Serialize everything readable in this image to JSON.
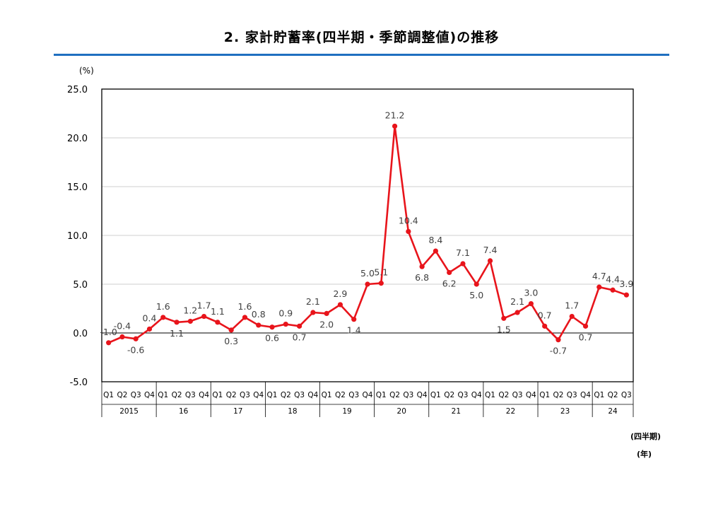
{
  "page": {
    "title": "2. 家計貯蓄率(四半期・季節調整値)の推移",
    "y_unit": "(%)",
    "x_unit_quarter": "(四半期)",
    "x_unit_year": "(年)"
  },
  "colors": {
    "line": "#e8141b",
    "rule": "#1f6fc0",
    "axis": "#000000",
    "grid": "#bfbfbf"
  },
  "chart_data": {
    "type": "line",
    "title": "2. 家計貯蓄率(四半期・季節調整値)の推移",
    "ylabel": "(%)",
    "xlabel": "(四半期) (年)",
    "ylim": [
      -5.0,
      25.0
    ],
    "yticks": [
      "25.0",
      "20.0",
      "15.0",
      "10.0",
      "5.0",
      "0.0",
      "-5.0"
    ],
    "ytick_values": [
      25,
      20,
      15,
      10,
      5,
      0,
      -5
    ],
    "grid": true,
    "years": [
      {
        "label": "2015",
        "count": 4
      },
      {
        "label": "16",
        "count": 4
      },
      {
        "label": "17",
        "count": 4
      },
      {
        "label": "18",
        "count": 4
      },
      {
        "label": "19",
        "count": 4
      },
      {
        "label": "20",
        "count": 4
      },
      {
        "label": "21",
        "count": 4
      },
      {
        "label": "22",
        "count": 4
      },
      {
        "label": "23",
        "count": 4
      },
      {
        "label": "24",
        "count": 3
      }
    ],
    "categories": [
      "Q1",
      "Q2",
      "Q3",
      "Q4",
      "Q1",
      "Q2",
      "Q3",
      "Q4",
      "Q1",
      "Q2",
      "Q3",
      "Q4",
      "Q1",
      "Q2",
      "Q3",
      "Q4",
      "Q1",
      "Q2",
      "Q3",
      "Q4",
      "Q1",
      "Q2",
      "Q3",
      "Q4",
      "Q1",
      "Q2",
      "Q3",
      "Q4",
      "Q1",
      "Q2",
      "Q3",
      "Q4",
      "Q1",
      "Q2",
      "Q3",
      "Q4",
      "Q1",
      "Q2",
      "Q3"
    ],
    "series": [
      {
        "values": [
          -1.0,
          -0.4,
          -0.6,
          0.4,
          1.6,
          1.1,
          1.2,
          1.7,
          1.1,
          0.3,
          1.6,
          0.8,
          0.6,
          0.9,
          0.7,
          2.1,
          2.0,
          2.9,
          1.4,
          5.0,
          5.1,
          21.2,
          10.4,
          6.8,
          8.4,
          6.2,
          7.1,
          5.0,
          7.4,
          1.5,
          2.1,
          3.0,
          0.7,
          -0.7,
          1.7,
          0.7,
          4.7,
          4.4,
          3.9
        ],
        "labels": [
          "-1.0",
          "-0.4",
          "-0.6",
          "0.4",
          "1.6",
          "1.1",
          "1.2",
          "1.7",
          "1.1",
          "0.3",
          "1.6",
          "0.8",
          "0.6",
          "0.9",
          "0.7",
          "2.1",
          "2.0",
          "2.9",
          "1.4",
          "5.0",
          "5.1",
          "21.2",
          "10.4",
          "6.8",
          "8.4",
          "6.2",
          "7.1",
          "5.0",
          "7.4",
          "1.5",
          "2.1",
          "3.0",
          "0.7",
          "-0.7",
          "1.7",
          "0.7",
          "4.7",
          "4.4",
          "3.9"
        ]
      }
    ]
  }
}
